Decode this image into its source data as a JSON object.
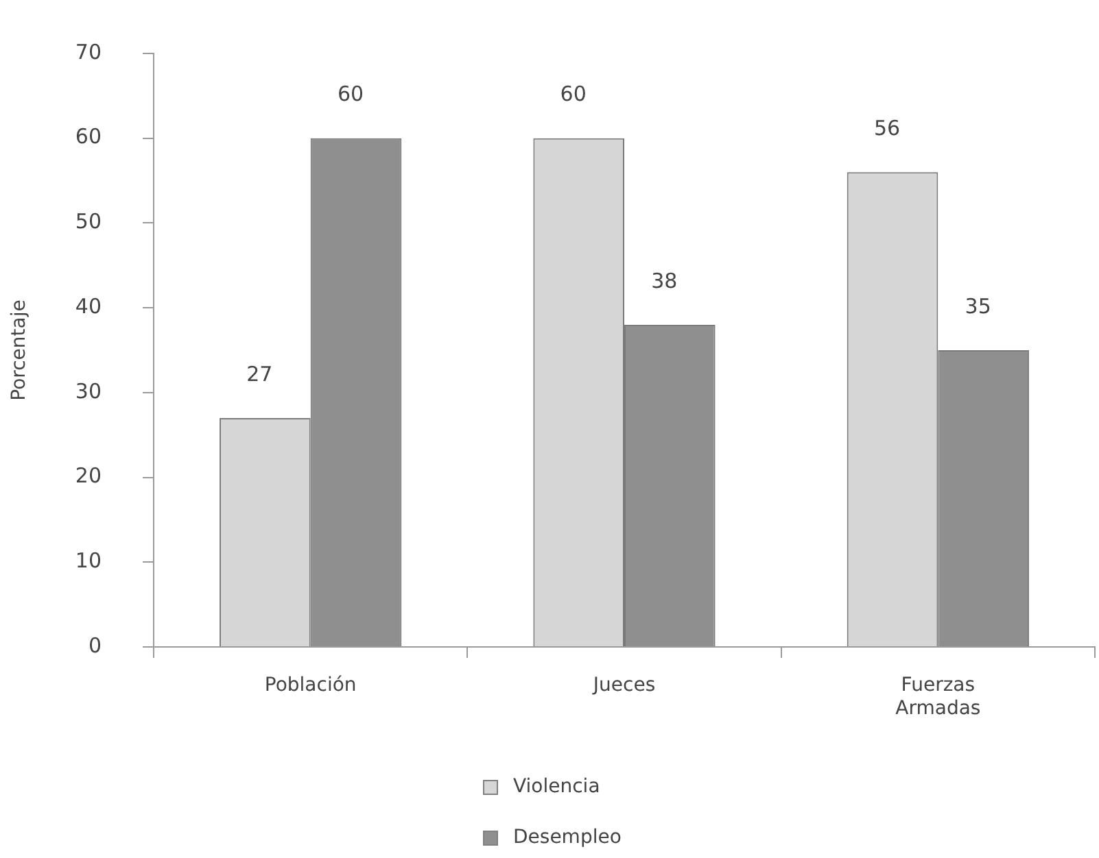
{
  "chart_data": {
    "type": "bar",
    "ylabel": "Porcentaje",
    "categories": [
      "Población",
      "Jueces",
      "Fuerzas Armadas"
    ],
    "series": [
      {
        "name": "Violencia",
        "color": "#d6d6d6",
        "values": [
          27,
          60,
          56
        ]
      },
      {
        "name": "Desempleo",
        "color": "#8f8f8f",
        "values": [
          60,
          38,
          35
        ]
      }
    ],
    "ylim": [
      0,
      70
    ],
    "yticks": [
      0,
      10,
      20,
      30,
      40,
      50,
      60,
      70
    ],
    "data_labels": true,
    "legend": "bottom"
  }
}
